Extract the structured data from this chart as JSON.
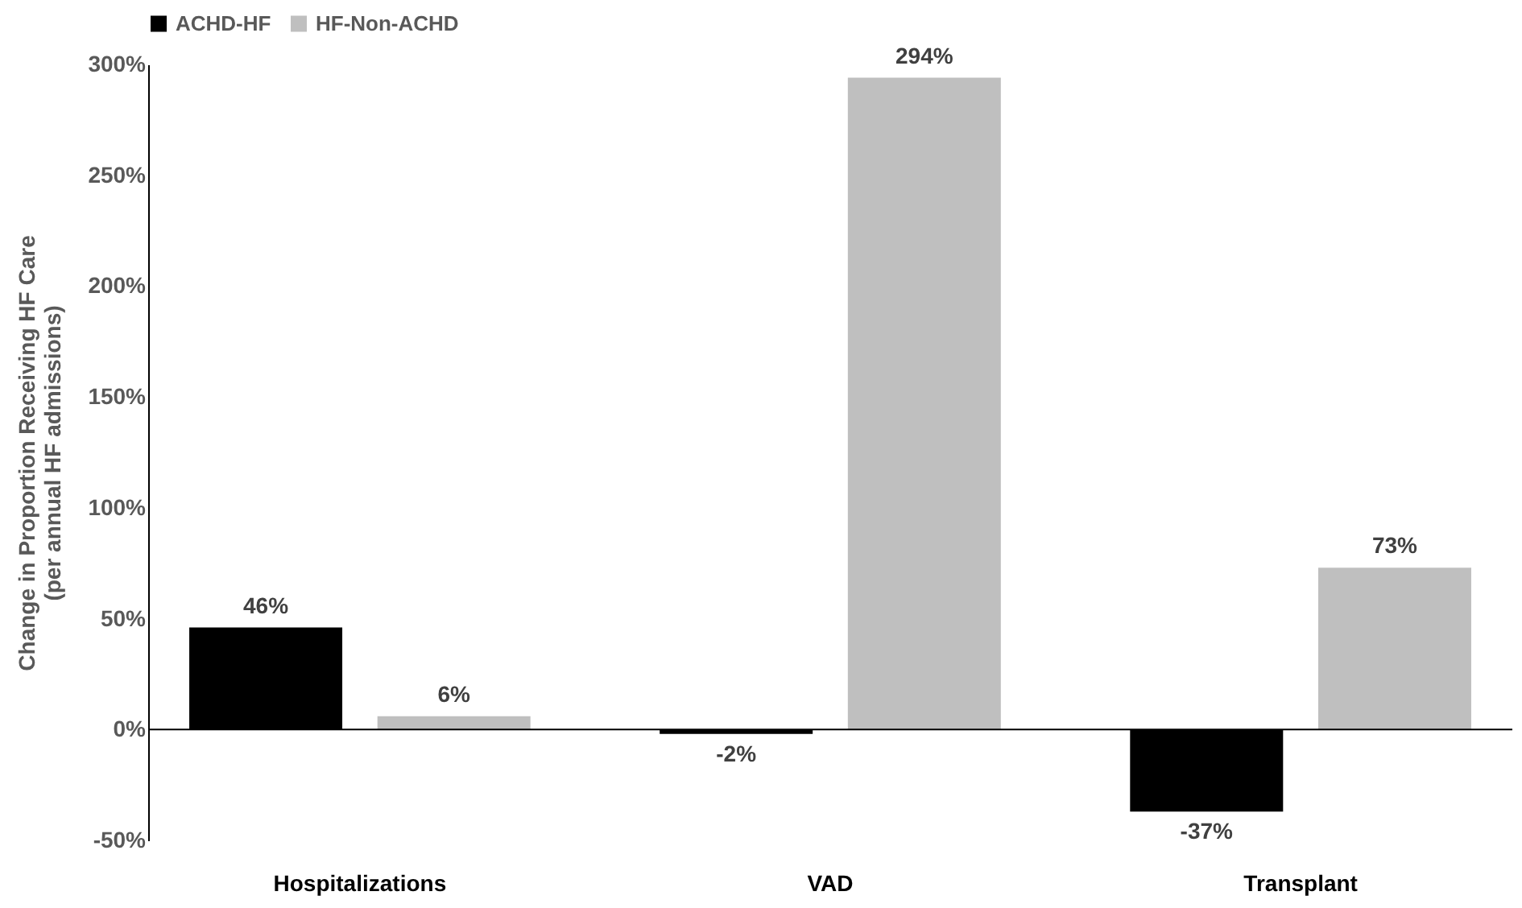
{
  "chart_data": {
    "type": "bar",
    "ylabel": "Change in Proportion Receiving HF Care\n(per annual HF admissions)",
    "categories": [
      "Hospitalizations",
      "VAD",
      "Transplant"
    ],
    "series": [
      {
        "name": "ACHD-HF",
        "color": "#000000",
        "values": [
          46,
          -2,
          -37
        ],
        "value_labels": [
          "46%",
          "-2%",
          "-37%"
        ]
      },
      {
        "name": "HF-Non-ACHD",
        "color": "#bfbfbf",
        "values": [
          6,
          294,
          73
        ],
        "value_labels": [
          "6%",
          "294%",
          "73%"
        ]
      }
    ],
    "ylim": [
      -50,
      300
    ],
    "yticks": [
      {
        "value": -50,
        "label": "-50%"
      },
      {
        "value": 0,
        "label": "0%"
      },
      {
        "value": 50,
        "label": "50%"
      },
      {
        "value": 100,
        "label": "100%"
      },
      {
        "value": 150,
        "label": "150%"
      },
      {
        "value": 200,
        "label": "200%"
      },
      {
        "value": 250,
        "label": "250%"
      },
      {
        "value": 300,
        "label": "300%"
      }
    ],
    "ref_lines": [
      {
        "axis": "y",
        "value": 0,
        "label": null,
        "color": "#000000"
      }
    ],
    "legend": "top",
    "grid": false
  }
}
